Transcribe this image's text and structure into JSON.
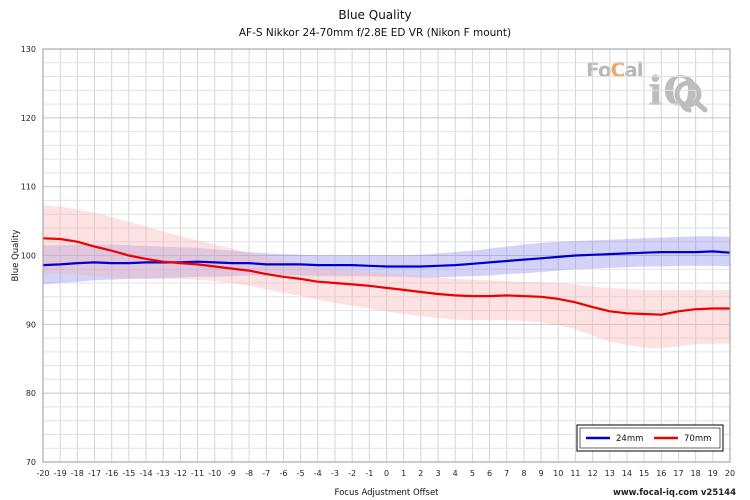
{
  "footer": "www.focal-iq.com  v25144",
  "logo": {
    "text_left": "Fo",
    "text_ring": "C",
    "text_right": "al",
    "text_iq": "iQ"
  },
  "chart_data": {
    "type": "line",
    "title": "Blue Quality",
    "subtitle": "AF-S Nikkor 24-70mm f/2.8E ED VR (Nikon F mount)",
    "xlabel": "Focus Adjustment Offset",
    "ylabel": "Blue Quality",
    "xlim": [
      -20,
      20
    ],
    "ylim": [
      70,
      130
    ],
    "x_ticks": [
      -20,
      -19,
      -18,
      -17,
      -16,
      -15,
      -14,
      -13,
      -12,
      -11,
      -10,
      -9,
      -8,
      -7,
      -6,
      -5,
      -4,
      -3,
      -2,
      -1,
      0,
      1,
      2,
      3,
      4,
      5,
      6,
      7,
      8,
      9,
      10,
      11,
      12,
      13,
      14,
      15,
      16,
      17,
      18,
      19,
      20
    ],
    "y_ticks": [
      70,
      80,
      90,
      100,
      110,
      120,
      130
    ],
    "grid": true,
    "legend": "bottom-right",
    "x": [
      -20,
      -19,
      -18,
      -17,
      -16,
      -15,
      -14,
      -13,
      -12,
      -11,
      -10,
      -9,
      -8,
      -7,
      -6,
      -5,
      -4,
      -3,
      -2,
      -1,
      0,
      1,
      2,
      3,
      4,
      5,
      6,
      7,
      8,
      9,
      10,
      11,
      12,
      13,
      14,
      15,
      16,
      17,
      18,
      19,
      20
    ],
    "series": [
      {
        "name": "24mm",
        "color": "#0000cc",
        "band_color": "#8c8cf0",
        "values": [
          98.6,
          98.7,
          98.9,
          99.0,
          98.9,
          98.9,
          99.0,
          99.0,
          99.0,
          99.1,
          99.0,
          98.9,
          98.9,
          98.7,
          98.7,
          98.7,
          98.6,
          98.6,
          98.6,
          98.5,
          98.4,
          98.4,
          98.4,
          98.5,
          98.6,
          98.8,
          99.0,
          99.2,
          99.4,
          99.6,
          99.8,
          100.0,
          100.1,
          100.2,
          100.3,
          100.4,
          100.5,
          100.5,
          100.5,
          100.6,
          100.4
        ],
        "upper": [
          101.5,
          101.5,
          101.6,
          101.6,
          101.6,
          101.5,
          101.4,
          101.3,
          101.2,
          101.1,
          100.9,
          100.7,
          100.5,
          100.3,
          100.2,
          100.1,
          100.0,
          100.0,
          100.0,
          100.0,
          100.0,
          100.0,
          100.1,
          100.3,
          100.5,
          100.7,
          101.0,
          101.3,
          101.6,
          101.8,
          102.0,
          102.1,
          102.2,
          102.3,
          102.4,
          102.5,
          102.6,
          102.7,
          102.8,
          102.8,
          102.7
        ],
        "lower": [
          95.8,
          96.0,
          96.2,
          96.4,
          96.5,
          96.6,
          96.6,
          96.7,
          96.8,
          96.9,
          96.9,
          97.0,
          97.1,
          97.1,
          97.1,
          97.1,
          97.0,
          97.0,
          97.0,
          97.0,
          96.9,
          96.9,
          96.8,
          96.8,
          96.9,
          97.0,
          97.1,
          97.3,
          97.4,
          97.6,
          97.8,
          98.0,
          98.1,
          98.2,
          98.3,
          98.4,
          98.4,
          98.5,
          98.5,
          98.5,
          98.4
        ]
      },
      {
        "name": "70mm",
        "color": "#ee0000",
        "band_color": "#f8b4b4",
        "values": [
          102.5,
          102.4,
          102.0,
          101.3,
          100.7,
          100.0,
          99.5,
          99.1,
          98.9,
          98.7,
          98.4,
          98.1,
          97.8,
          97.3,
          96.9,
          96.6,
          96.2,
          96.0,
          95.8,
          95.6,
          95.3,
          95.0,
          94.7,
          94.4,
          94.2,
          94.1,
          94.1,
          94.2,
          94.1,
          94.0,
          93.7,
          93.2,
          92.5,
          91.9,
          91.6,
          91.5,
          91.4,
          91.9,
          92.2,
          92.3,
          92.3
        ],
        "upper": [
          107.3,
          107.1,
          106.7,
          106.2,
          105.6,
          104.9,
          104.2,
          103.5,
          102.8,
          102.2,
          101.6,
          101.0,
          100.4,
          99.8,
          99.3,
          98.8,
          98.4,
          98.1,
          97.8,
          97.6,
          97.4,
          97.2,
          97.0,
          96.8,
          96.6,
          96.5,
          96.4,
          96.3,
          96.2,
          96.1,
          96.0,
          95.8,
          95.5,
          95.3,
          95.1,
          95.0,
          95.0,
          95.0,
          95.0,
          95.0,
          95.0
        ],
        "lower": [
          97.5,
          97.4,
          97.2,
          97.0,
          96.8,
          96.7,
          96.7,
          96.6,
          96.6,
          96.5,
          96.3,
          96.0,
          95.6,
          95.1,
          94.6,
          94.1,
          93.6,
          93.1,
          92.7,
          92.3,
          91.9,
          91.5,
          91.2,
          90.9,
          90.7,
          90.6,
          90.6,
          90.6,
          90.5,
          90.3,
          89.9,
          89.3,
          88.4,
          87.5,
          87.0,
          86.6,
          86.5,
          86.8,
          87.1,
          87.2,
          87.2
        ]
      }
    ]
  }
}
